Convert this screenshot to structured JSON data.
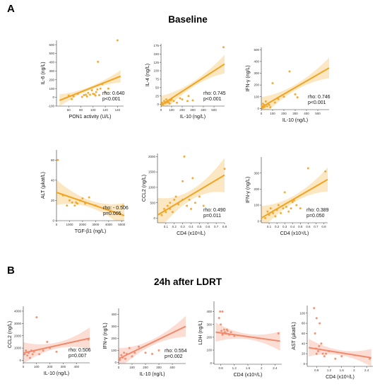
{
  "panels": {
    "a": "A",
    "b": "B"
  },
  "sections": {
    "a_title": "Baseline",
    "b_title": "24h after LDRT"
  },
  "colors": {
    "baseline": "#f0a422",
    "ldrt": "#f08a6c",
    "baseline_band": "#fbe3b8",
    "ldrt_band": "#fbd7cc"
  },
  "chart_data": [
    {
      "type": "scatter",
      "section": "A",
      "xlabel": "PON1 activity (U/L)",
      "ylabel": "IL-6 (ng/L)",
      "xlim": [
        40,
        150
      ],
      "ylim": [
        -100,
        650
      ],
      "xticks": [
        60,
        80,
        100,
        120,
        140
      ],
      "yticks": [
        -100,
        0,
        100,
        200,
        300,
        400,
        500,
        600
      ],
      "points": [
        [
          60,
          20
        ],
        [
          65,
          -20
        ],
        [
          68,
          10
        ],
        [
          75,
          40
        ],
        [
          82,
          5
        ],
        [
          85,
          25
        ],
        [
          88,
          30
        ],
        [
          90,
          10
        ],
        [
          92,
          50
        ],
        [
          95,
          30
        ],
        [
          98,
          80
        ],
        [
          100,
          40
        ],
        [
          102,
          35
        ],
        [
          104,
          20
        ],
        [
          105,
          60
        ],
        [
          107,
          90
        ],
        [
          108,
          405
        ],
        [
          110,
          25
        ],
        [
          112,
          100
        ],
        [
          115,
          150
        ],
        [
          120,
          60
        ],
        [
          125,
          100
        ],
        [
          140,
          650
        ]
      ],
      "fit": [
        [
          45,
          -35
        ],
        [
          145,
          240
        ]
      ],
      "band_hw": 55,
      "rho": "rho: 0.640",
      "p": "p<0.001"
    },
    {
      "type": "scatter",
      "section": "A",
      "xlabel": "IL-10 (ng/L)",
      "ylabel": "IL-4 (ng/L)",
      "xlim": [
        0,
        600
      ],
      "ylim": [
        -5,
        180
      ],
      "xticks": [
        0,
        100,
        200,
        300,
        400,
        500
      ],
      "yticks": [
        0,
        25,
        50,
        75,
        100,
        125,
        150,
        175
      ],
      "points": [
        [
          10,
          5
        ],
        [
          20,
          0
        ],
        [
          30,
          10
        ],
        [
          40,
          4
        ],
        [
          50,
          15
        ],
        [
          60,
          6
        ],
        [
          70,
          8
        ],
        [
          80,
          3
        ],
        [
          90,
          12
        ],
        [
          100,
          15
        ],
        [
          120,
          10
        ],
        [
          150,
          5
        ],
        [
          180,
          18
        ],
        [
          200,
          15
        ],
        [
          250,
          10
        ],
        [
          260,
          25
        ],
        [
          300,
          12
        ],
        [
          590,
          170
        ]
      ],
      "fit": [
        [
          0,
          -2
        ],
        [
          600,
          120
        ]
      ],
      "band_hw": 22,
      "rho": "rho: 0.745",
      "p": "p<0.001"
    },
    {
      "type": "scatter",
      "section": "A",
      "xlabel": "IL-10 (ng/L)",
      "ylabel": "IFN-γ (ng/L)",
      "xlim": [
        0,
        600
      ],
      "ylim": [
        -10,
        520
      ],
      "xticks": [
        0,
        100,
        200,
        300,
        400,
        500
      ],
      "yticks": [
        0,
        100,
        200,
        300,
        400,
        500
      ],
      "points": [
        [
          5,
          20
        ],
        [
          10,
          5
        ],
        [
          15,
          40
        ],
        [
          20,
          10
        ],
        [
          25,
          30
        ],
        [
          30,
          15
        ],
        [
          40,
          60
        ],
        [
          50,
          20
        ],
        [
          60,
          40
        ],
        [
          70,
          30
        ],
        [
          80,
          10
        ],
        [
          100,
          215
        ],
        [
          120,
          50
        ],
        [
          150,
          80
        ],
        [
          200,
          100
        ],
        [
          250,
          315
        ],
        [
          300,
          120
        ],
        [
          320,
          95
        ]
      ],
      "fit": [
        [
          0,
          10
        ],
        [
          600,
          345
        ]
      ],
      "band_hw": 70,
      "rho": "rho: 0.746",
      "p": "p<0.001"
    },
    {
      "type": "scatter",
      "section": "A",
      "xlabel": "TGF-β1 (ng/L)",
      "ylabel": "ALT (µkat/L)",
      "xlim": [
        0,
        5200
      ],
      "ylim": [
        0,
        70
      ],
      "xticks": [
        0,
        1000,
        2000,
        3000,
        4000,
        5000
      ],
      "yticks": [
        0,
        20,
        40,
        60
      ],
      "points": [
        [
          100,
          60
        ],
        [
          500,
          25
        ],
        [
          800,
          15
        ],
        [
          1000,
          20
        ],
        [
          1200,
          18
        ],
        [
          1400,
          15
        ],
        [
          1500,
          18
        ],
        [
          1600,
          17
        ],
        [
          1800,
          20
        ],
        [
          2000,
          22
        ],
        [
          2200,
          17
        ],
        [
          2500,
          23
        ],
        [
          3000,
          15
        ],
        [
          5100,
          15
        ]
      ],
      "fit": [
        [
          0,
          28
        ],
        [
          5200,
          5
        ]
      ],
      "band_hw": 10,
      "rho": "rho: - 0.506",
      "p": "p=0.005"
    },
    {
      "type": "scatter",
      "section": "A",
      "xlabel": "CD4 (x10⁹/L)",
      "ylabel": "CCL2 (ng/L)",
      "xlim": [
        0,
        0.8
      ],
      "ylim": [
        -150,
        2100
      ],
      "xticks": [
        0.1,
        0.2,
        0.3,
        0.4,
        0.5,
        0.6,
        0.7,
        0.8
      ],
      "yticks": [
        0,
        500,
        1000,
        1500,
        2000
      ],
      "points": [
        [
          0.05,
          100
        ],
        [
          0.08,
          300
        ],
        [
          0.1,
          200
        ],
        [
          0.12,
          400
        ],
        [
          0.15,
          500
        ],
        [
          0.15,
          300
        ],
        [
          0.18,
          200
        ],
        [
          0.2,
          600
        ],
        [
          0.22,
          700
        ],
        [
          0.25,
          450
        ],
        [
          0.3,
          1200
        ],
        [
          0.3,
          600
        ],
        [
          0.32,
          2000
        ],
        [
          0.35,
          400
        ],
        [
          0.38,
          600
        ],
        [
          0.4,
          300
        ],
        [
          0.42,
          1300
        ],
        [
          0.45,
          500
        ],
        [
          0.5,
          700
        ],
        [
          0.55,
          400
        ],
        [
          0.8,
          1600
        ]
      ],
      "fit": [
        [
          0,
          100
        ],
        [
          0.8,
          1400
        ]
      ],
      "band_hw": 450,
      "rho": "rho: 0.490",
      "p": "p=0.011"
    },
    {
      "type": "scatter",
      "section": "A",
      "xlabel": "CD4 (x10⁹/L)",
      "ylabel": "IFN-γ (ng/L)",
      "xlim": [
        0,
        0.85
      ],
      "ylim": [
        -10,
        400
      ],
      "xticks": [
        0.1,
        0.2,
        0.3,
        0.4,
        0.5,
        0.6,
        0.7,
        0.8
      ],
      "yticks": [
        0,
        100,
        200,
        300
      ],
      "points": [
        [
          0.05,
          20
        ],
        [
          0.08,
          60
        ],
        [
          0.1,
          40
        ],
        [
          0.12,
          80
        ],
        [
          0.15,
          50
        ],
        [
          0.18,
          30
        ],
        [
          0.2,
          70
        ],
        [
          0.22,
          100
        ],
        [
          0.25,
          50
        ],
        [
          0.28,
          80
        ],
        [
          0.3,
          180
        ],
        [
          0.32,
          90
        ],
        [
          0.35,
          60
        ],
        [
          0.38,
          80
        ],
        [
          0.4,
          120
        ],
        [
          0.42,
          130
        ],
        [
          0.45,
          100
        ],
        [
          0.5,
          80
        ],
        [
          0.6,
          330
        ],
        [
          0.82,
          310
        ]
      ],
      "fit": [
        [
          0,
          20
        ],
        [
          0.85,
          260
        ]
      ],
      "band_hw": 60,
      "rho": "rho: 0.389",
      "p": "p=0.050"
    },
    {
      "type": "scatter",
      "section": "B",
      "xlabel": "IL-10 (ng/L)",
      "ylabel": "CCL2 (ng/L)",
      "xlim": [
        0,
        500
      ],
      "ylim": [
        -200,
        4400
      ],
      "xticks": [
        0,
        100,
        200,
        300,
        400
      ],
      "yticks": [
        0,
        1000,
        2000,
        3000,
        4000
      ],
      "points": [
        [
          10,
          500
        ],
        [
          20,
          800
        ],
        [
          30,
          400
        ],
        [
          40,
          600
        ],
        [
          50,
          200
        ],
        [
          60,
          800
        ],
        [
          70,
          500
        ],
        [
          80,
          700
        ],
        [
          100,
          3500
        ],
        [
          120,
          500
        ],
        [
          150,
          800
        ],
        [
          180,
          1500
        ],
        [
          200,
          1000
        ],
        [
          250,
          700
        ],
        [
          490,
          1700
        ]
      ],
      "fit": [
        [
          0,
          600
        ],
        [
          500,
          1800
        ]
      ],
      "band_hw": 700,
      "rho": "rho: 0.506",
      "p": "p=0.007"
    },
    {
      "type": "scatter",
      "section": "B",
      "xlabel": "IL-10 (ng/L)",
      "ylabel": "IFN-γ (ng/L)",
      "xlim": [
        0,
        500
      ],
      "ylim": [
        -10,
        450
      ],
      "xticks": [
        0,
        100,
        200,
        300,
        400
      ],
      "yticks": [
        0,
        100,
        200,
        300,
        400
      ],
      "points": [
        [
          10,
          20
        ],
        [
          20,
          60
        ],
        [
          30,
          40
        ],
        [
          40,
          80
        ],
        [
          50,
          30
        ],
        [
          60,
          70
        ],
        [
          80,
          120
        ],
        [
          100,
          50
        ],
        [
          120,
          80
        ],
        [
          150,
          130
        ],
        [
          200,
          80
        ],
        [
          250,
          70
        ],
        [
          300,
          100
        ]
      ],
      "fit": [
        [
          0,
          30
        ],
        [
          500,
          300
        ]
      ],
      "band_hw": 70,
      "rho": "rho: 0.554",
      "p": "p=0.002"
    },
    {
      "type": "scatter",
      "section": "B",
      "xlabel": "CD4 (x10⁹/L)",
      "ylabel": "LDH (ng/L)",
      "xlim": [
        0.6,
        2.6
      ],
      "ylim": [
        -10,
        480
      ],
      "xticks": [
        0.8,
        1.2,
        1.6,
        2.0,
        2.4
      ],
      "yticks": [
        0,
        100,
        200,
        300,
        400
      ],
      "points": [
        [
          0.75,
          350
        ],
        [
          0.78,
          400
        ],
        [
          0.8,
          300
        ],
        [
          0.82,
          250
        ],
        [
          0.85,
          220
        ],
        [
          0.85,
          400
        ],
        [
          0.88,
          230
        ],
        [
          0.9,
          260
        ],
        [
          0.92,
          240
        ],
        [
          0.95,
          230
        ],
        [
          0.98,
          260
        ],
        [
          1.0,
          250
        ],
        [
          1.05,
          220
        ],
        [
          1.1,
          240
        ],
        [
          1.2,
          210
        ],
        [
          2.5,
          230
        ]
      ],
      "fit": [
        [
          0.65,
          240
        ],
        [
          2.55,
          170
        ]
      ],
      "band_hw": 60,
      "rho": "",
      "p": ""
    },
    {
      "type": "scatter",
      "section": "B",
      "xlabel": "CD4 (x10⁹/L)",
      "ylabel": "AST (µkat/L)",
      "xlim": [
        0.5,
        2.6
      ],
      "ylim": [
        -5,
        115
      ],
      "xticks": [
        0.8,
        1.2,
        1.6,
        2.0,
        2.4
      ],
      "yticks": [
        0,
        20,
        40,
        60,
        80,
        100
      ],
      "points": [
        [
          0.72,
          110
        ],
        [
          0.75,
          60
        ],
        [
          0.78,
          30
        ],
        [
          0.8,
          90
        ],
        [
          0.8,
          20
        ],
        [
          0.85,
          25
        ],
        [
          0.88,
          35
        ],
        [
          0.9,
          80
        ],
        [
          0.95,
          40
        ],
        [
          1.0,
          20
        ],
        [
          1.05,
          15
        ],
        [
          1.1,
          20
        ],
        [
          1.2,
          25
        ],
        [
          1.4,
          10
        ],
        [
          1.6,
          15
        ],
        [
          2.5,
          10
        ]
      ],
      "fit": [
        [
          0.55,
          32
        ],
        [
          2.55,
          12
        ]
      ],
      "band_hw": 14,
      "rho": "",
      "p": ""
    }
  ]
}
